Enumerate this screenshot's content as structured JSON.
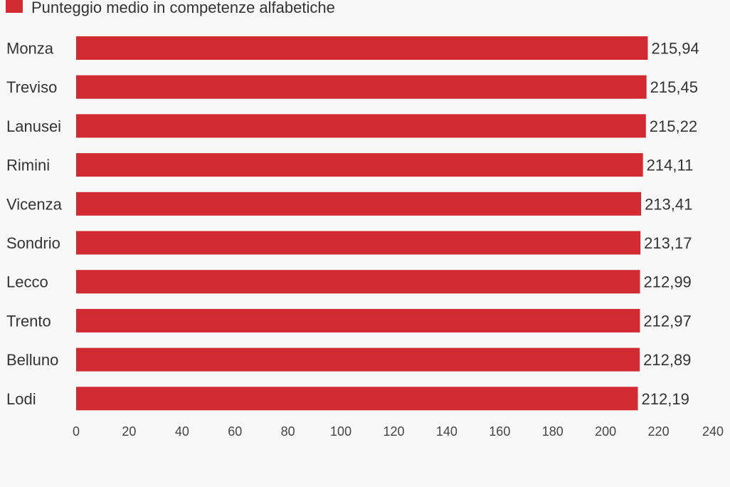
{
  "chart_data": {
    "type": "bar",
    "orientation": "horizontal",
    "title": "",
    "xlabel": "",
    "ylabel": "",
    "legend": {
      "placement": "top-left",
      "entries": [
        {
          "name": "Punteggio medio in competenze alfabetiche",
          "color": "#d12a30"
        }
      ]
    },
    "categories": [
      "Monza",
      "Treviso",
      "Lanusei",
      "Rimini",
      "Vicenza",
      "Sondrio",
      "Lecco",
      "Trento",
      "Belluno",
      "Lodi"
    ],
    "series": [
      {
        "name": "Punteggio medio in competenze alfabetiche",
        "color": "#d12a30",
        "values": [
          215.94,
          215.45,
          215.22,
          214.11,
          213.41,
          213.17,
          212.99,
          212.97,
          212.89,
          212.19
        ],
        "value_labels": [
          "215,94",
          "215,45",
          "215,22",
          "214,11",
          "213,41",
          "213,17",
          "212,99",
          "212,97",
          "212,89",
          "212,19"
        ]
      }
    ],
    "xlim": [
      0,
      240
    ],
    "ticks": [
      0,
      20,
      40,
      60,
      80,
      100,
      120,
      140,
      160,
      180,
      200,
      220,
      240
    ],
    "tick_labels": [
      "0",
      "20",
      "40",
      "60",
      "80",
      "100",
      "120",
      "140",
      "160",
      "180",
      "200",
      "220",
      "240"
    ],
    "grid": false
  }
}
